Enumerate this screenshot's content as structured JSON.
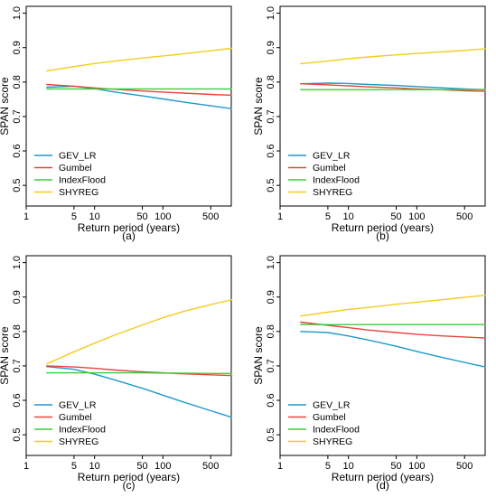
{
  "chart_data": [
    {
      "type": "line",
      "panel_label": "(a)",
      "xlabel": "Return period (years)",
      "ylabel": "SPAN score",
      "x_scale": "log",
      "xlim": [
        1,
        1000
      ],
      "ylim": [
        0.44,
        1.02
      ],
      "x_ticks": [
        1,
        5,
        10,
        50,
        100,
        500
      ],
      "x_tick_labels": [
        "1",
        "5",
        "10",
        "50",
        "100",
        "500"
      ],
      "y_ticks": [
        0.5,
        0.6,
        0.7,
        0.8,
        0.9,
        1.0
      ],
      "y_tick_labels": [
        "0.5",
        "0.6",
        "0.7",
        "0.8",
        "0.9",
        "1.0"
      ],
      "legend_position": "bottom-left",
      "x": [
        2,
        5,
        10,
        20,
        50,
        100,
        200,
        500,
        1000
      ],
      "series": [
        {
          "name": "GEV_LR",
          "color": "#1f9ac9",
          "values": [
            0.785,
            0.788,
            0.781,
            0.771,
            0.76,
            0.751,
            0.742,
            0.731,
            0.723
          ]
        },
        {
          "name": "Gumbel",
          "color": "#e8453c",
          "values": [
            0.793,
            0.788,
            0.783,
            0.779,
            0.774,
            0.771,
            0.768,
            0.764,
            0.762
          ]
        },
        {
          "name": "IndexFlood",
          "color": "#3ccc3c",
          "values": [
            0.78,
            0.78,
            0.78,
            0.78,
            0.78,
            0.78,
            0.78,
            0.78,
            0.78
          ]
        },
        {
          "name": "SHYREG",
          "color": "#f2cc1f",
          "values": [
            0.832,
            0.845,
            0.854,
            0.861,
            0.87,
            0.876,
            0.882,
            0.891,
            0.898
          ]
        }
      ]
    },
    {
      "type": "line",
      "panel_label": "(b)",
      "xlabel": "Return period (years)",
      "ylabel": "SPAN score",
      "x_scale": "log",
      "xlim": [
        1,
        1000
      ],
      "ylim": [
        0.44,
        1.02
      ],
      "x_ticks": [
        1,
        5,
        10,
        50,
        100,
        500
      ],
      "x_tick_labels": [
        "1",
        "5",
        "10",
        "50",
        "100",
        "500"
      ],
      "y_ticks": [
        0.5,
        0.6,
        0.7,
        0.8,
        0.9,
        1.0
      ],
      "y_tick_labels": [
        "0.5",
        "0.6",
        "0.7",
        "0.8",
        "0.9",
        "1.0"
      ],
      "legend_position": "bottom-left",
      "x": [
        2,
        5,
        10,
        20,
        50,
        100,
        200,
        500,
        1000
      ],
      "series": [
        {
          "name": "GEV_LR",
          "color": "#1f9ac9",
          "values": [
            0.795,
            0.797,
            0.796,
            0.793,
            0.79,
            0.787,
            0.784,
            0.78,
            0.778
          ]
        },
        {
          "name": "Gumbel",
          "color": "#e8453c",
          "values": [
            0.795,
            0.792,
            0.789,
            0.786,
            0.783,
            0.78,
            0.778,
            0.775,
            0.773
          ]
        },
        {
          "name": "IndexFlood",
          "color": "#3ccc3c",
          "values": [
            0.778,
            0.778,
            0.778,
            0.778,
            0.778,
            0.778,
            0.778,
            0.778,
            0.778
          ]
        },
        {
          "name": "SHYREG",
          "color": "#f2cc1f",
          "values": [
            0.853,
            0.861,
            0.868,
            0.873,
            0.879,
            0.883,
            0.887,
            0.892,
            0.897
          ]
        }
      ]
    },
    {
      "type": "line",
      "panel_label": "(c)",
      "xlabel": "Return period (years)",
      "ylabel": "SPAN score",
      "x_scale": "log",
      "xlim": [
        1,
        1000
      ],
      "ylim": [
        0.44,
        1.02
      ],
      "x_ticks": [
        1,
        5,
        10,
        50,
        100,
        500
      ],
      "x_tick_labels": [
        "1",
        "5",
        "10",
        "50",
        "100",
        "500"
      ],
      "y_ticks": [
        0.5,
        0.6,
        0.7,
        0.8,
        0.9,
        1.0
      ],
      "y_tick_labels": [
        "0.5",
        "0.6",
        "0.7",
        "0.8",
        "0.9",
        "1.0"
      ],
      "legend_position": "bottom-left",
      "x": [
        2,
        5,
        10,
        20,
        50,
        100,
        200,
        500,
        1000
      ],
      "series": [
        {
          "name": "GEV_LR",
          "color": "#1f9ac9",
          "values": [
            0.698,
            0.69,
            0.676,
            0.659,
            0.635,
            0.615,
            0.595,
            0.57,
            0.551
          ]
        },
        {
          "name": "Gumbel",
          "color": "#e8453c",
          "values": [
            0.7,
            0.697,
            0.693,
            0.688,
            0.683,
            0.68,
            0.677,
            0.674,
            0.672
          ]
        },
        {
          "name": "IndexFlood",
          "color": "#3ccc3c",
          "values": [
            0.68,
            0.68,
            0.68,
            0.68,
            0.68,
            0.679,
            0.679,
            0.678,
            0.678
          ]
        },
        {
          "name": "SHYREG",
          "color": "#f2cc1f",
          "values": [
            0.706,
            0.741,
            0.766,
            0.79,
            0.819,
            0.84,
            0.858,
            0.878,
            0.892
          ]
        }
      ]
    },
    {
      "type": "line",
      "panel_label": "(d)",
      "xlabel": "Return period (years)",
      "ylabel": "SPAN score",
      "x_scale": "log",
      "xlim": [
        1,
        1000
      ],
      "ylim": [
        0.44,
        1.02
      ],
      "x_ticks": [
        1,
        5,
        10,
        50,
        100,
        500
      ],
      "x_tick_labels": [
        "1",
        "5",
        "10",
        "50",
        "100",
        "500"
      ],
      "y_ticks": [
        0.5,
        0.6,
        0.7,
        0.8,
        0.9,
        1.0
      ],
      "y_tick_labels": [
        "0.5",
        "0.6",
        "0.7",
        "0.8",
        "0.9",
        "1.0"
      ],
      "legend_position": "bottom-left",
      "x": [
        2,
        5,
        10,
        20,
        50,
        100,
        200,
        500,
        1000
      ],
      "series": [
        {
          "name": "GEV_LR",
          "color": "#1f9ac9",
          "values": [
            0.8,
            0.797,
            0.787,
            0.775,
            0.757,
            0.742,
            0.728,
            0.71,
            0.697
          ]
        },
        {
          "name": "Gumbel",
          "color": "#e8453c",
          "values": [
            0.827,
            0.818,
            0.811,
            0.804,
            0.797,
            0.792,
            0.788,
            0.784,
            0.781
          ]
        },
        {
          "name": "IndexFlood",
          "color": "#3ccc3c",
          "values": [
            0.82,
            0.82,
            0.82,
            0.82,
            0.82,
            0.82,
            0.82,
            0.82,
            0.82
          ]
        },
        {
          "name": "SHYREG",
          "color": "#f2cc1f",
          "values": [
            0.845,
            0.856,
            0.864,
            0.87,
            0.879,
            0.885,
            0.891,
            0.899,
            0.905
          ]
        }
      ]
    }
  ]
}
